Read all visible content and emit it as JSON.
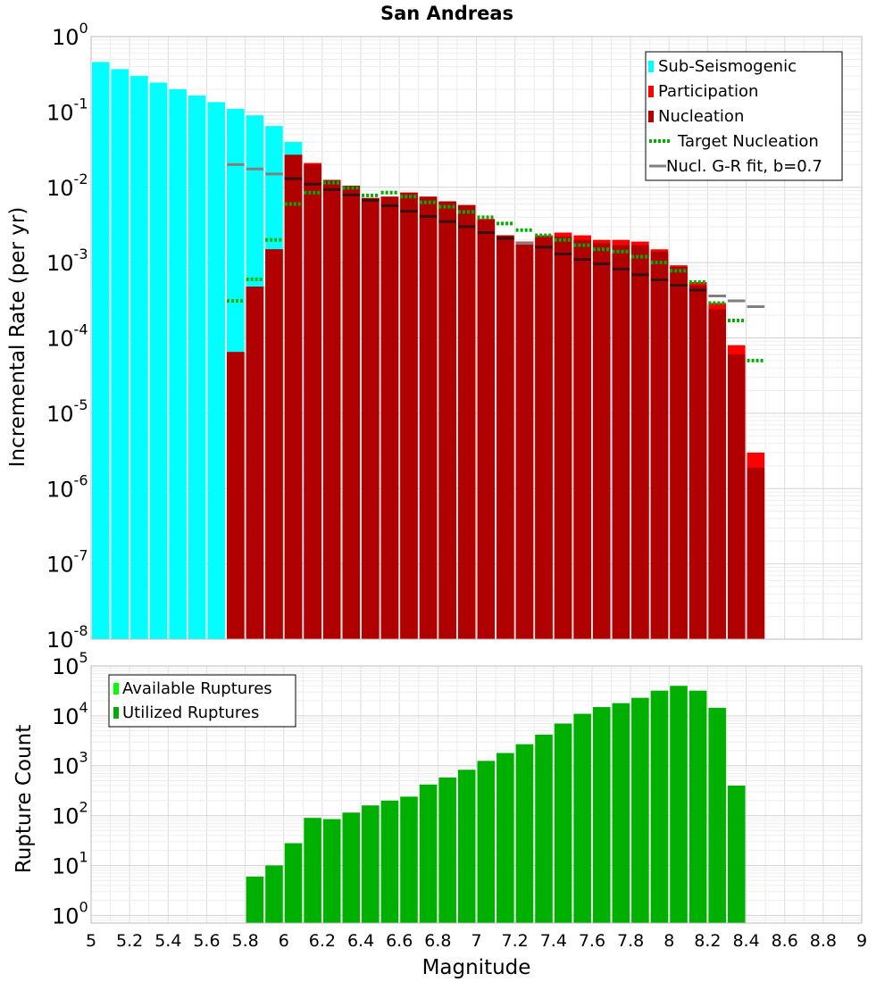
{
  "chart_data": [
    {
      "type": "bar",
      "title": "San Andreas",
      "xlabel": "",
      "ylabel": "Incremental Rate (per yr)",
      "yscale": "log",
      "xlim": [
        5,
        9
      ],
      "ylim": [
        1e-08,
        1
      ],
      "bin_width": 0.1,
      "grid": true,
      "legend_position": "top-right",
      "x": [
        5.05,
        5.15,
        5.25,
        5.35,
        5.45,
        5.55,
        5.65,
        5.75,
        5.85,
        5.95,
        6.05,
        6.15,
        6.25,
        6.35,
        6.45,
        6.55,
        6.65,
        6.75,
        6.85,
        6.95,
        7.05,
        7.15,
        7.25,
        7.35,
        7.45,
        7.55,
        7.65,
        7.75,
        7.85,
        7.95,
        8.05,
        8.15,
        8.25,
        8.35,
        8.45
      ],
      "series": [
        {
          "name": "Sub-Seismogenic",
          "color": "#00ffff",
          "kind": "bar",
          "values": [
            0.46,
            0.37,
            0.3,
            0.245,
            0.2,
            0.165,
            0.135,
            0.11,
            0.09,
            0.065,
            0.04,
            0.021,
            null,
            null,
            null,
            null,
            null,
            null,
            null,
            null,
            null,
            null,
            null,
            null,
            null,
            null,
            null,
            null,
            null,
            null,
            null,
            null,
            null,
            null,
            null
          ]
        },
        {
          "name": "Participation",
          "color": "#ff0000",
          "kind": "bar",
          "values": [
            null,
            null,
            null,
            null,
            null,
            null,
            null,
            6.5e-05,
            0.00048,
            0.0015,
            0.027,
            0.021,
            0.0125,
            0.0105,
            0.0072,
            0.0075,
            0.0085,
            0.0075,
            0.0065,
            0.0058,
            0.0038,
            0.0023,
            0.0019,
            0.0023,
            0.0025,
            0.0023,
            0.002,
            0.002,
            0.0019,
            0.0015,
            0.00092,
            0.00055,
            0.00029,
            8e-05,
            3e-06
          ]
        },
        {
          "name": "Nucleation",
          "color": "#b00000",
          "kind": "bar",
          "values": [
            null,
            null,
            null,
            null,
            null,
            null,
            null,
            6.5e-05,
            0.00048,
            0.0015,
            0.027,
            0.02,
            0.0125,
            0.0105,
            0.0072,
            0.0075,
            0.0085,
            0.0075,
            0.0065,
            0.0058,
            0.0037,
            0.0023,
            0.0018,
            0.0022,
            0.0022,
            0.002,
            0.0018,
            0.0017,
            0.0017,
            0.0014,
            0.00088,
            0.0005,
            0.00024,
            6e-05,
            1.9e-06
          ]
        },
        {
          "name": "Target Nucleation",
          "color": "#00b000",
          "kind": "target",
          "values": [
            null,
            null,
            null,
            null,
            null,
            null,
            null,
            0.00031,
            0.0006,
            0.002,
            0.006,
            0.0085,
            0.0115,
            0.0098,
            0.0078,
            0.0085,
            0.0075,
            0.0063,
            0.0055,
            0.0047,
            0.004,
            0.0033,
            0.0027,
            0.0023,
            0.002,
            0.0017,
            0.0015,
            0.0014,
            0.0012,
            0.001,
            0.00078,
            0.00055,
            0.00029,
            0.00017,
            5e-05
          ]
        },
        {
          "name": "Nucl. G-R fit, b=0.7",
          "color": "#808080",
          "kind": "fit",
          "values": [
            null,
            null,
            null,
            null,
            null,
            null,
            null,
            0.02,
            0.0175,
            0.015,
            0.013,
            0.011,
            0.0093,
            0.0079,
            0.0067,
            0.0057,
            0.0048,
            0.0041,
            0.0035,
            0.003,
            0.0025,
            0.0021,
            0.0018,
            0.0016,
            0.0013,
            0.0011,
            0.00096,
            0.00082,
            0.00069,
            0.00059,
            0.0005,
            0.00043,
            0.00036,
            0.00031,
            0.00026
          ]
        }
      ],
      "yticks": [
        {
          "base": "10",
          "exp": "0",
          "value": 1
        },
        {
          "base": "10",
          "exp": "-1",
          "value": 0.1
        },
        {
          "base": "10",
          "exp": "-2",
          "value": 0.01
        },
        {
          "base": "10",
          "exp": "-3",
          "value": 0.001
        },
        {
          "base": "10",
          "exp": "-4",
          "value": 0.0001
        },
        {
          "base": "10",
          "exp": "-5",
          "value": 1e-05
        },
        {
          "base": "10",
          "exp": "-6",
          "value": 1e-06
        },
        {
          "base": "10",
          "exp": "-7",
          "value": 1e-07
        },
        {
          "base": "10",
          "exp": "-8",
          "value": 1e-08
        }
      ]
    },
    {
      "type": "bar",
      "title": "",
      "xlabel": "Magnitude",
      "ylabel": "Rupture Count",
      "yscale": "log",
      "xlim": [
        5,
        9
      ],
      "ylim": [
        0.7,
        100000
      ],
      "bin_width": 0.1,
      "grid": true,
      "legend_position": "top-left",
      "x": [
        5.85,
        5.95,
        6.05,
        6.15,
        6.25,
        6.35,
        6.45,
        6.55,
        6.65,
        6.75,
        6.85,
        6.95,
        7.05,
        7.15,
        7.25,
        7.35,
        7.45,
        7.55,
        7.65,
        7.75,
        7.85,
        7.95,
        8.05,
        8.15,
        8.25,
        8.35
      ],
      "series": [
        {
          "name": "Available Ruptures",
          "color": "#00ff00",
          "values": [
            6,
            10,
            28,
            90,
            85,
            115,
            160,
            200,
            240,
            420,
            580,
            830,
            1250,
            1800,
            2700,
            4200,
            7000,
            11000,
            15000,
            18000,
            23000,
            32000,
            40000,
            32000,
            14500,
            400
          ]
        },
        {
          "name": "Utilized Ruptures",
          "color": "#00b000",
          "values": [
            6,
            10,
            28,
            90,
            85,
            115,
            160,
            200,
            240,
            420,
            580,
            830,
            1250,
            1800,
            2700,
            4200,
            7000,
            11000,
            15000,
            18000,
            23000,
            32000,
            40000,
            32000,
            14500,
            400
          ]
        }
      ],
      "yticks": [
        {
          "base": "10",
          "exp": "5",
          "value": 100000
        },
        {
          "base": "10",
          "exp": "4",
          "value": 10000
        },
        {
          "base": "10",
          "exp": "3",
          "value": 1000
        },
        {
          "base": "10",
          "exp": "2",
          "value": 100
        },
        {
          "base": "10",
          "exp": "1",
          "value": 10
        },
        {
          "base": "10",
          "exp": "0",
          "value": 1
        }
      ],
      "xticks": [
        "5",
        "5.2",
        "5.4",
        "5.6",
        "5.8",
        "6",
        "6.2",
        "6.4",
        "6.6",
        "6.8",
        "7",
        "7.2",
        "7.4",
        "7.6",
        "7.8",
        "8",
        "8.2",
        "8.4",
        "8.6",
        "8.8",
        "9"
      ]
    }
  ]
}
